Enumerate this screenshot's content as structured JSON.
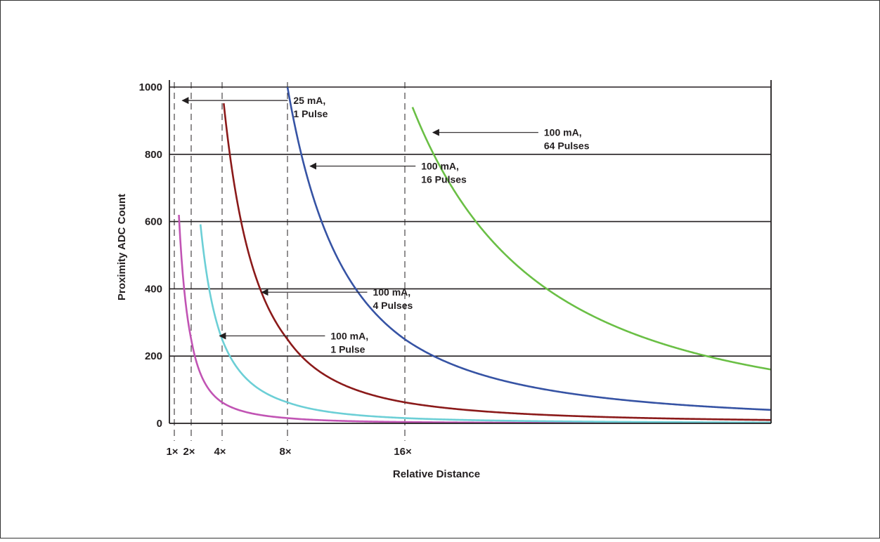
{
  "chart_data": {
    "type": "line",
    "title": "",
    "xlabel": "Relative Distance",
    "ylabel": "Proximity ADC Count",
    "ylim": [
      0,
      1000
    ],
    "xlim": [
      0,
      40
    ],
    "y_ticks": [
      "1000",
      "800",
      "600",
      "400",
      "200",
      "0"
    ],
    "x_ticks": [
      {
        "label": "1×",
        "value": 1
      },
      {
        "label": "2×",
        "value": 2
      },
      {
        "label": "4×",
        "value": 4
      },
      {
        "label": "8×",
        "value": 8
      },
      {
        "label": "16×",
        "value": 16
      }
    ],
    "grid": "horizontal solid lines at y ticks; dashed vertical reference lines at 1x, 2x, 4x, 8x, 16x",
    "series": [
      {
        "name": "25 mA, 1 Pulse",
        "color": "#c154b4",
        "formula": "1000/x^2",
        "x_start": 1.27
      },
      {
        "name": "100 mA, 1 Pulse",
        "color": "#6ccfd6",
        "formula": "4000/x^2",
        "x_start": 2.6
      },
      {
        "name": "100 mA, 4 Pulses",
        "color": "#8b1a1a",
        "formula": "16000/x^2",
        "x_start": 4.1
      },
      {
        "name": "100 mA, 16 Pulses",
        "color": "#3653a4",
        "formula": "64000/x^2",
        "x_start": 8.0
      },
      {
        "name": "100 mA, 64 Pulses",
        "color": "#6abf45",
        "formula": "256000/x^2",
        "x_start": 16.5
      }
    ],
    "annotations": [
      {
        "series": 0,
        "lines": [
          "25 mA,",
          "1 Pulse"
        ],
        "x": 1.35,
        "y": 960
      },
      {
        "series": 1,
        "lines": [
          "100 mA,",
          "1 Pulse"
        ],
        "x": 3.7,
        "y": 260
      },
      {
        "series": 2,
        "lines": [
          "100 mA,",
          "4 Pulses"
        ],
        "x": 6.3,
        "y": 390
      },
      {
        "series": 3,
        "lines": [
          "100 mA,",
          "16 Pulses"
        ],
        "x": 9.4,
        "y": 765
      },
      {
        "series": 4,
        "lines": [
          "100 mA,",
          "64 Pulses"
        ],
        "x": 17.7,
        "y": 865
      }
    ]
  }
}
